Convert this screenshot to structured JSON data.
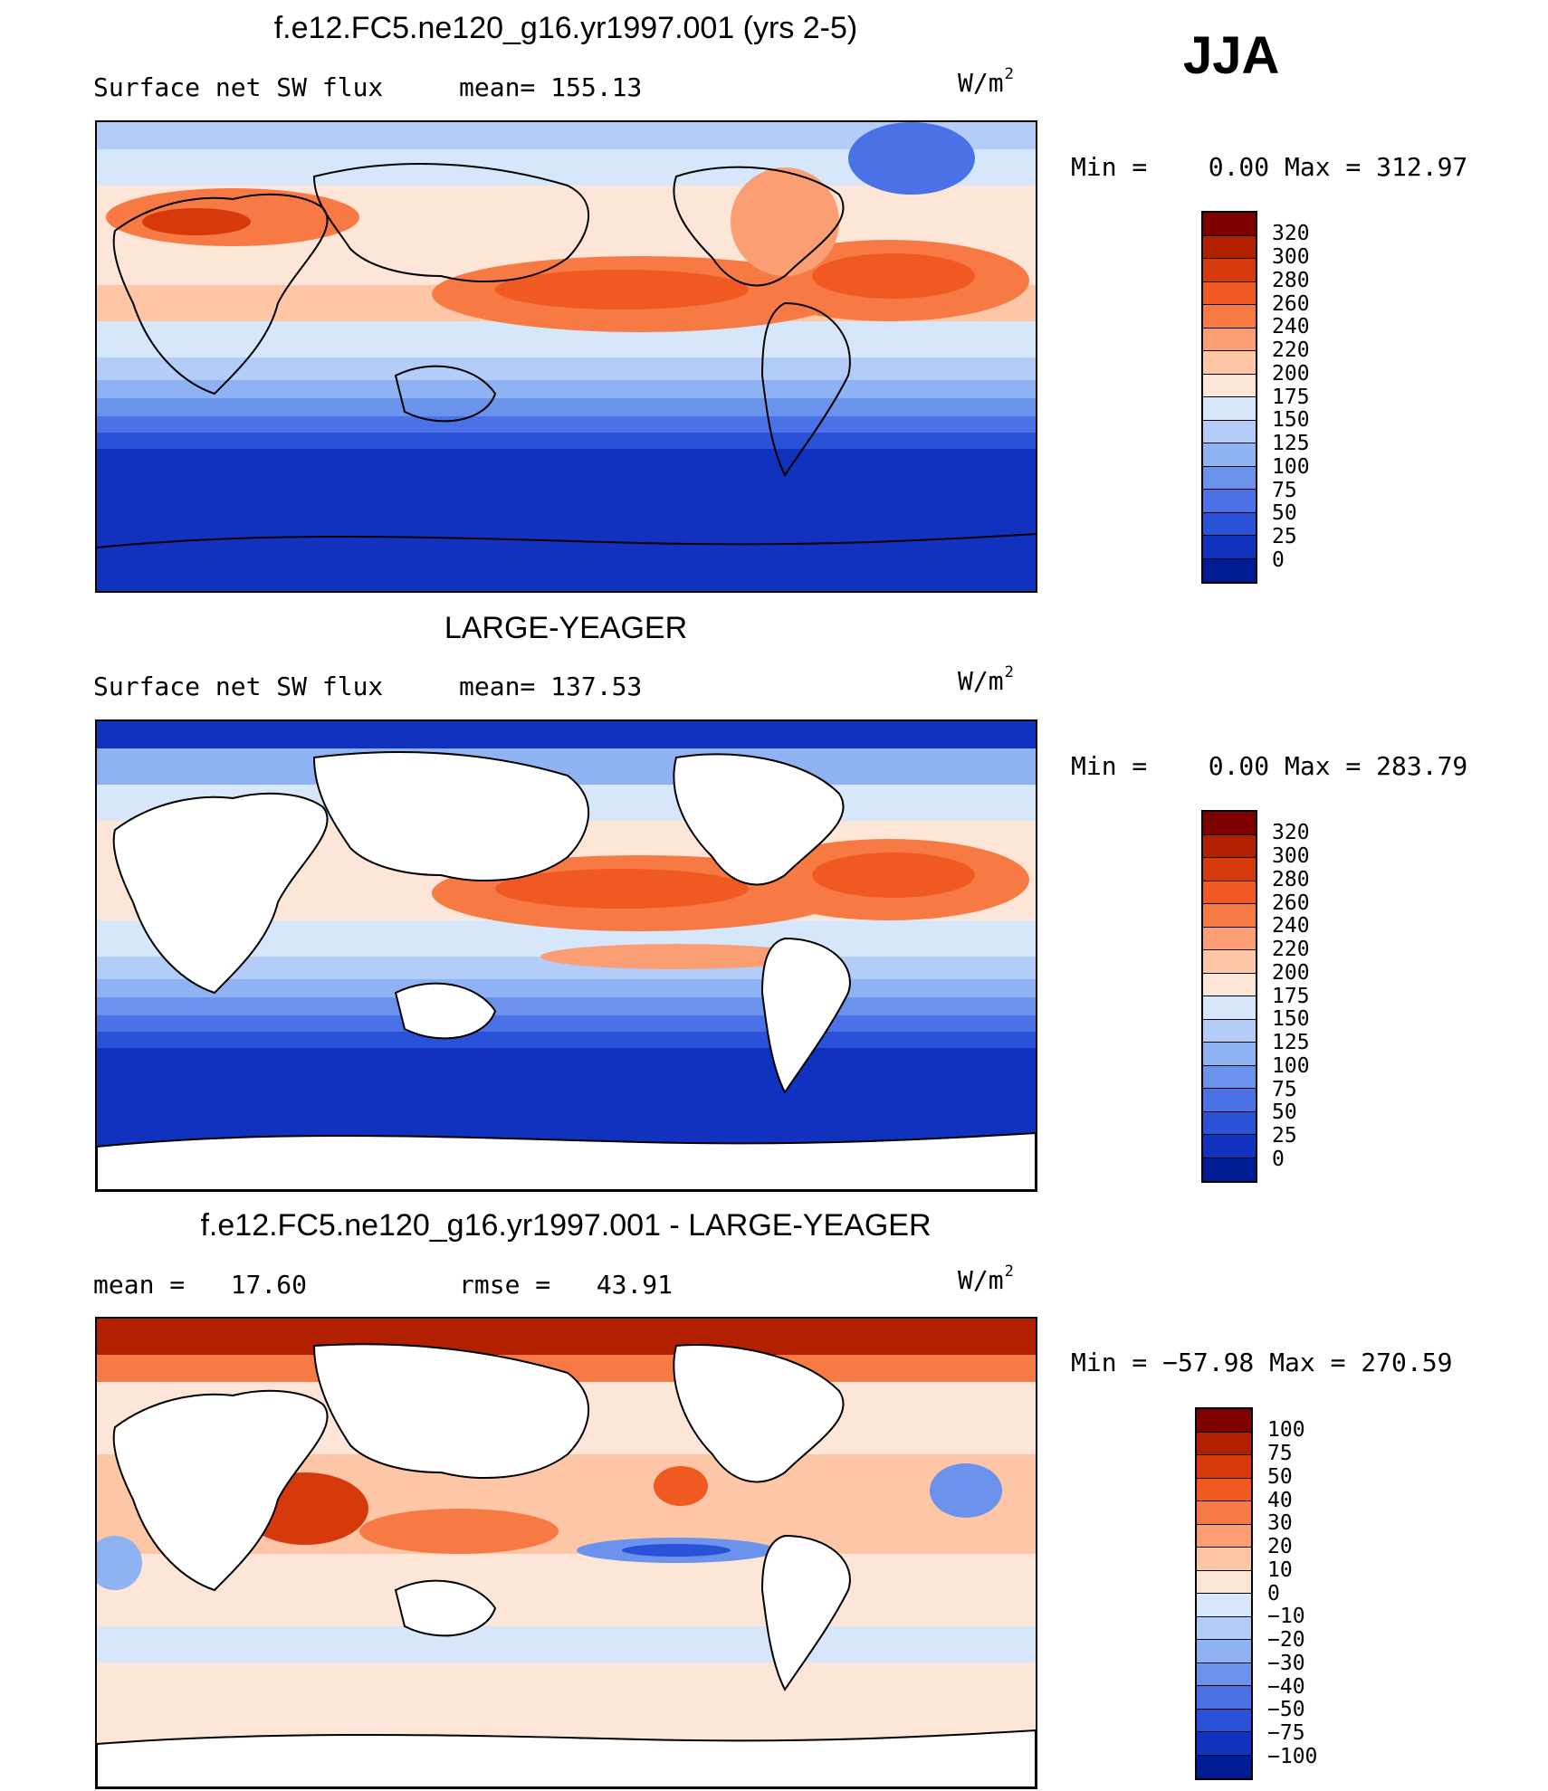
{
  "season": "JJA",
  "panels": [
    {
      "title": "f.e12.FC5.ne120_g16.yr1997.001 (yrs 2-5)",
      "left_label": "Surface net SW flux",
      "mid_label": "mean= 155.13",
      "units_base": "W/m",
      "units_exp": "2",
      "minmax": "Min =    0.00 Max = 312.97",
      "colorbar": {
        "labels": [
          "320",
          "300",
          "280",
          "260",
          "240",
          "220",
          "200",
          "175",
          "150",
          "125",
          "100",
          "75",
          "50",
          "25",
          "0"
        ],
        "colors": [
          "#7f0000",
          "#b22000",
          "#d63a0c",
          "#f05a22",
          "#f77a45",
          "#fb9e74",
          "#fdc6a6",
          "#fde6d8",
          "#d6e6fb",
          "#b3cdf8",
          "#8eb2f2",
          "#6b93ec",
          "#4a72e6",
          "#2a52d8",
          "#1032be",
          "#001c94"
        ]
      }
    },
    {
      "title": "LARGE-YEAGER",
      "left_label": "Surface net SW flux",
      "mid_label": "mean= 137.53",
      "units_base": "W/m",
      "units_exp": "2",
      "minmax": "Min =    0.00 Max = 283.79",
      "colorbar": {
        "labels": [
          "320",
          "300",
          "280",
          "260",
          "240",
          "220",
          "200",
          "175",
          "150",
          "125",
          "100",
          "75",
          "50",
          "25",
          "0"
        ],
        "colors": [
          "#7f0000",
          "#b22000",
          "#d63a0c",
          "#f05a22",
          "#f77a45",
          "#fb9e74",
          "#fdc6a6",
          "#fde6d8",
          "#d6e6fb",
          "#b3cdf8",
          "#8eb2f2",
          "#6b93ec",
          "#4a72e6",
          "#2a52d8",
          "#1032be",
          "#001c94"
        ]
      }
    },
    {
      "title": "f.e12.FC5.ne120_g16.yr1997.001 - LARGE-YEAGER",
      "left_label": "mean =   17.60",
      "mid_label": "rmse =   43.91",
      "units_base": "W/m",
      "units_exp": "2",
      "minmax": "Min = −57.98 Max = 270.59",
      "colorbar": {
        "labels": [
          "100",
          "75",
          "50",
          "40",
          "30",
          "20",
          "10",
          "0",
          "−10",
          "−20",
          "−30",
          "−40",
          "−50",
          "−75",
          "−100"
        ],
        "colors": [
          "#7f0000",
          "#b22000",
          "#d63a0c",
          "#f05a22",
          "#f77a45",
          "#fb9e74",
          "#fdc6a6",
          "#fde6d8",
          "#d6e6fb",
          "#b3cdf8",
          "#8eb2f2",
          "#6b93ec",
          "#4a72e6",
          "#2a52d8",
          "#1032be",
          "#001c94"
        ]
      }
    }
  ]
}
